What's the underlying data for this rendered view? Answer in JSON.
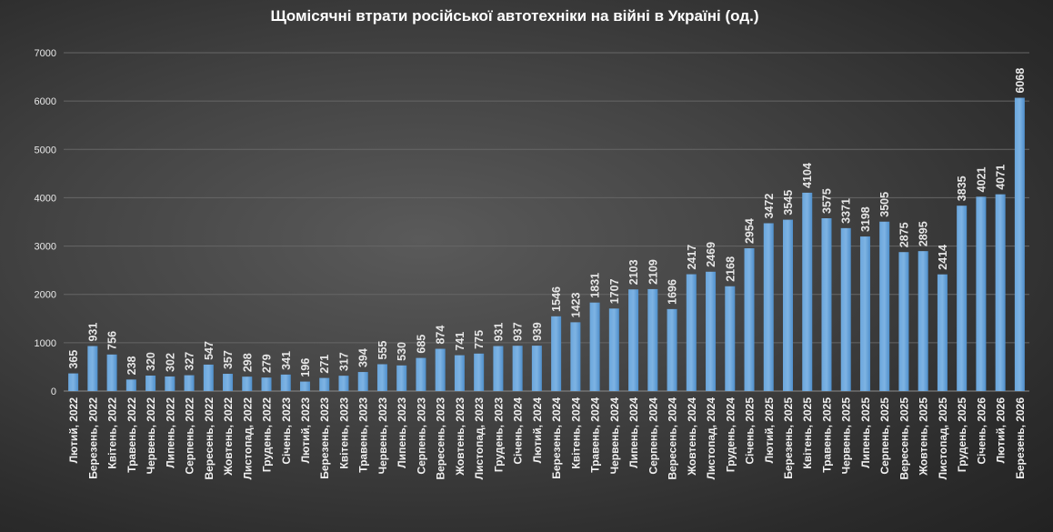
{
  "chart_data": {
    "type": "bar",
    "title": "Щомісячні  втрати  російської  автотехніки  на  війні  в  Україні  (од.)",
    "xlabel": "",
    "ylabel": "",
    "ylim": [
      0,
      7000
    ],
    "yticks": [
      0,
      1000,
      2000,
      3000,
      4000,
      5000,
      6000,
      7000
    ],
    "grid": true,
    "bar_color": "#5b9bd5",
    "categories": [
      "Лютий, 2022",
      "Березень, 2022",
      "Квітень, 2022",
      "Травень, 2022",
      "Червень, 2022",
      "Липень, 2022",
      "Серпень, 2022",
      "Вересень, 2022",
      "Жовтень, 2022",
      "Листопад, 2022",
      "Грудень, 2022",
      "Січень, 2023",
      "Лютий, 2023",
      "Березень, 2023",
      "Квітень, 2023",
      "Травень, 2023",
      "Червень, 2023",
      "Липень, 2023",
      "Серпень, 2023",
      "Вересень, 2023",
      "Жовтень, 2023",
      "Листопад, 2023",
      "Грудень, 2023",
      "Січень, 2024",
      "Лютий, 2024",
      "Березень, 2024",
      "Квітень, 2024",
      "Травень, 2024",
      "Червень, 2024",
      "Липень, 2024",
      "Серпень, 2024",
      "Вересень, 2024",
      "Жовтень, 2024",
      "Листопад, 2024",
      "Грудень, 2024",
      "Січень, 2025",
      "Лютий, 2025",
      "Березень, 2025",
      "Квітень, 2025",
      "Травень, 2025",
      "Червень, 2025",
      "Липень, 2025",
      "Серпень, 2025",
      "Вересень, 2025",
      "Жовтень, 2025",
      "Листопад, 2025",
      "Грудень, 2025",
      "Січень, 2026",
      "Лютий, 2026",
      "Березень, 2026"
    ],
    "values": [
      365,
      931,
      756,
      238,
      320,
      302,
      327,
      547,
      357,
      298,
      279,
      341,
      196,
      271,
      317,
      394,
      555,
      530,
      685,
      874,
      741,
      775,
      931,
      937,
      939,
      1546,
      1423,
      1831,
      1707,
      2103,
      2109,
      1696,
      2417,
      2469,
      2168,
      2954,
      3472,
      3545,
      4104,
      3575,
      3371,
      3198,
      3505,
      2875,
      2895,
      2414,
      3835,
      4021,
      4071,
      6068
    ]
  }
}
